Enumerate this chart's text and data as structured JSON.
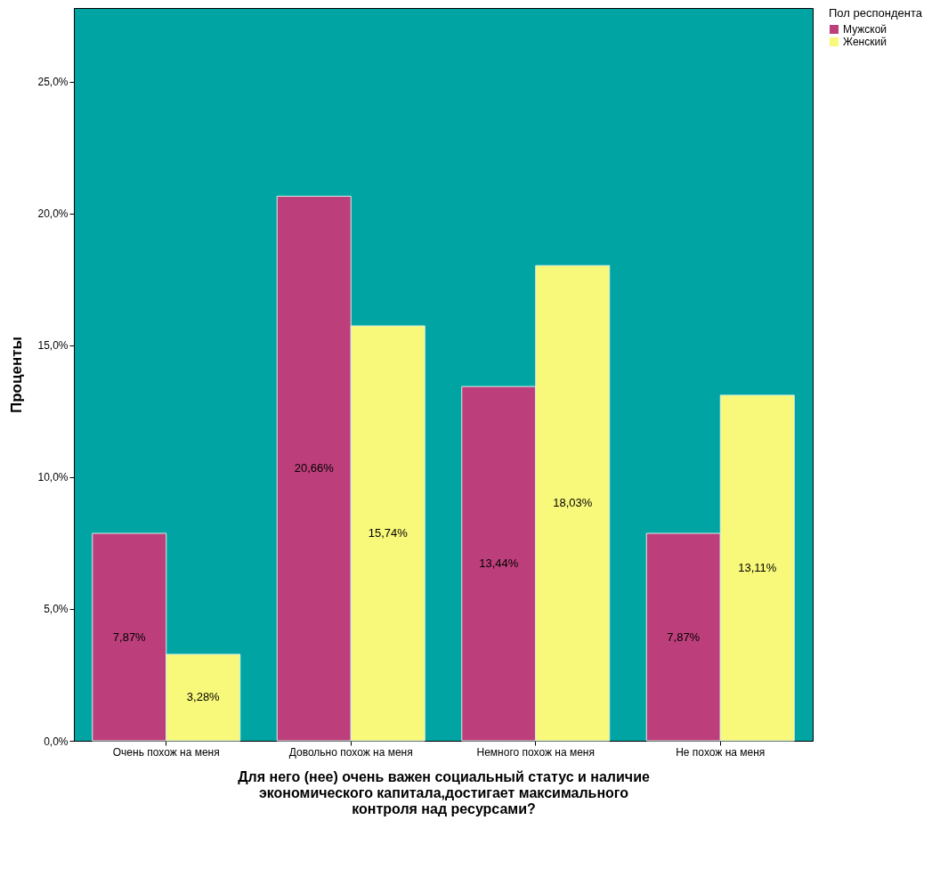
{
  "chart_data": {
    "type": "bar",
    "xlabel": "Для него (нее) очень важен социальный статус и наличие экономического капитала,достигает максимального контроля над ресурсами?",
    "ylabel": "Проценты",
    "legend_title": "Пол респондента",
    "legend": "top right",
    "grid": false,
    "categories": [
      "Очень похож на меня",
      "Довольно похож на меня",
      "Немного похож на меня",
      "Не похож на меня"
    ],
    "ylim": [
      0,
      27.8
    ],
    "yticks": [
      {
        "value": 0,
        "label": "0,0%"
      },
      {
        "value": 5,
        "label": "5,0%"
      },
      {
        "value": 10,
        "label": "10,0%"
      },
      {
        "value": 15,
        "label": "15,0%"
      },
      {
        "value": 20,
        "label": "20,0%"
      },
      {
        "value": 25,
        "label": "25,0%"
      }
    ],
    "series": [
      {
        "name": "Мужской",
        "color": "#bc3f7b",
        "values": [
          7.87,
          20.66,
          13.44,
          7.87
        ],
        "value_labels": [
          "7,87%",
          "20,66%",
          "13,44%",
          "7,87%"
        ]
      },
      {
        "name": "Женский",
        "color": "#f8f87a",
        "values": [
          3.28,
          15.74,
          18.03,
          13.11
        ],
        "value_labels": [
          "3,28%",
          "15,74%",
          "18,03%",
          "13,11%"
        ]
      }
    ]
  }
}
